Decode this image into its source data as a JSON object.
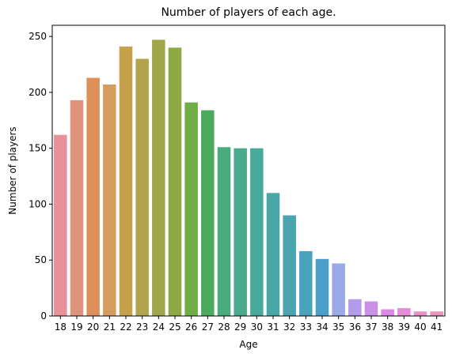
{
  "chart_data": {
    "type": "bar",
    "title": "Number of players of each age.",
    "xlabel": "Age",
    "ylabel": "Number of players",
    "categories": [
      "18",
      "19",
      "20",
      "21",
      "22",
      "23",
      "24",
      "25",
      "26",
      "27",
      "28",
      "29",
      "30",
      "31",
      "32",
      "33",
      "34",
      "35",
      "36",
      "37",
      "38",
      "39",
      "40",
      "41"
    ],
    "values": [
      162,
      193,
      213,
      207,
      241,
      230,
      247,
      240,
      191,
      184,
      151,
      150,
      150,
      110,
      90,
      58,
      51,
      47,
      15,
      13,
      6,
      7,
      4,
      4
    ],
    "ylim": [
      0,
      260
    ],
    "yticks": [
      0,
      50,
      100,
      150,
      200,
      250
    ],
    "grid": false,
    "legend": "none",
    "colors": [
      "#e8919a",
      "#e0937c",
      "#df905a",
      "#d69b5e",
      "#c5a14b",
      "#b2a34d",
      "#a0a64a",
      "#8da943",
      "#6eae45",
      "#4aab5f",
      "#4aab7c",
      "#4aab8c",
      "#48aa9b",
      "#48a8a8",
      "#4aa5b0",
      "#4aa3bd",
      "#4a9fcb",
      "#9aa9e8",
      "#b49bea",
      "#cc8fe9",
      "#df87e4",
      "#e68ada",
      "#e98fc8",
      "#ea93bb"
    ]
  }
}
